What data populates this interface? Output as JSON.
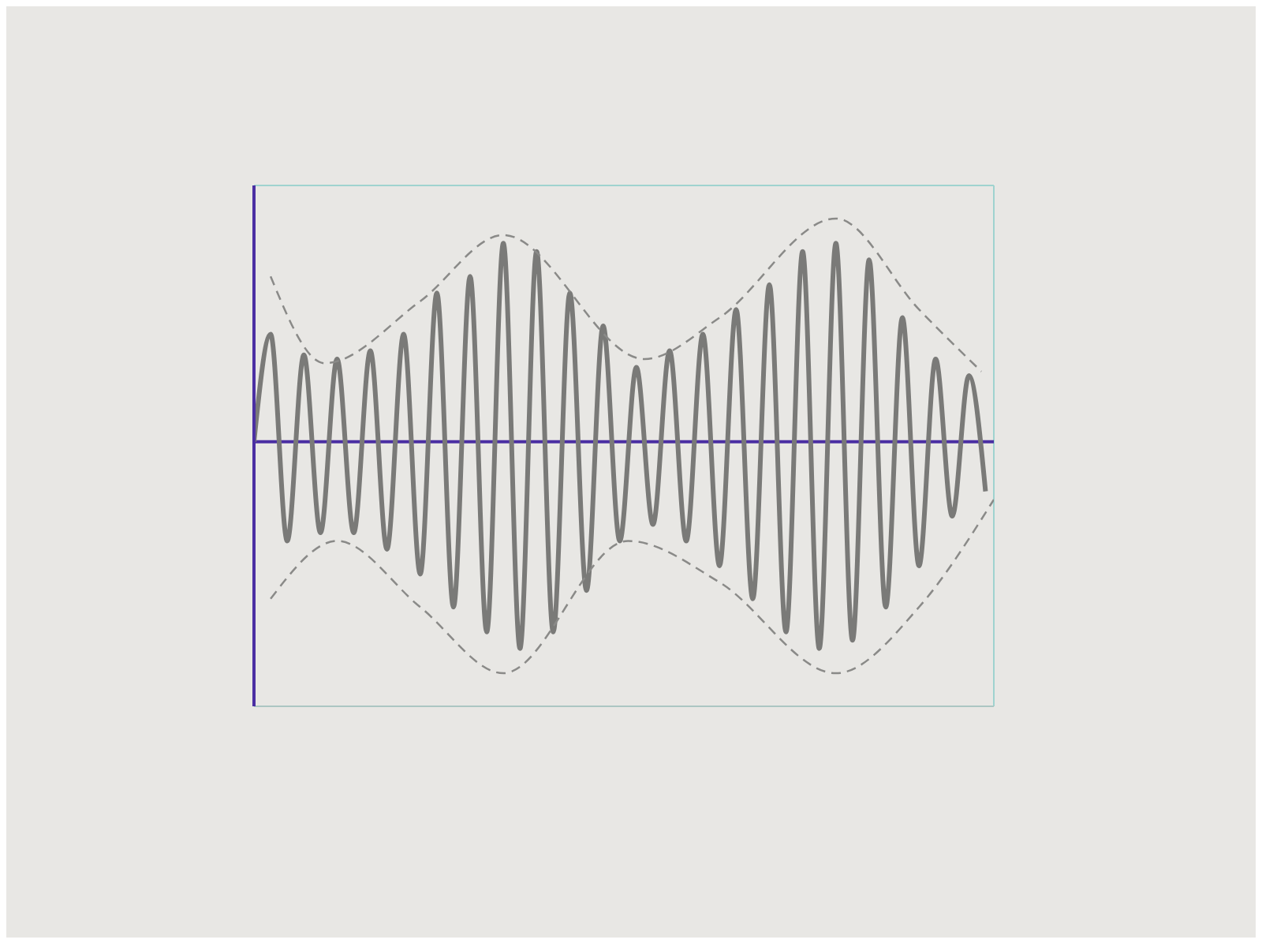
{
  "chart_data": {
    "type": "line",
    "grid": true,
    "tick_labels": false,
    "xlim": [
      0,
      8.9
    ],
    "ylim": [
      -3.2,
      3.1
    ],
    "xticks": [
      0,
      1,
      2,
      3,
      4,
      5,
      6,
      7,
      8
    ],
    "yticks": [
      -3,
      -2,
      -1,
      0,
      1,
      2,
      3
    ],
    "series": [
      {
        "color": "#7a7a78",
        "line_style": "solid",
        "x": [
          0,
          0.2,
          0.4,
          0.6,
          0.8,
          1.0,
          1.2,
          1.4,
          1.6,
          1.8,
          2.0,
          2.2,
          2.4,
          2.6,
          2.8,
          3.0,
          3.2,
          3.4,
          3.6,
          3.8,
          4.0,
          4.2,
          4.4,
          4.6,
          4.8,
          5.0,
          5.2,
          5.4,
          5.6,
          5.8,
          6.0,
          6.2,
          6.4,
          6.6,
          6.8,
          7.0,
          7.2,
          7.4,
          7.6,
          7.8,
          8.0,
          8.2,
          8.4,
          8.6,
          8.8
        ],
        "values": [
          0,
          1.3,
          -1.2,
          1.05,
          -1.1,
          1.0,
          -1.1,
          1.1,
          -1.3,
          1.3,
          -1.6,
          1.8,
          -2.0,
          2.0,
          -2.3,
          2.4,
          -2.5,
          2.3,
          -2.3,
          1.8,
          -1.8,
          1.4,
          -1.2,
          0.9,
          -1.0,
          1.1,
          -1.2,
          1.3,
          -1.5,
          1.6,
          -1.9,
          1.9,
          -2.3,
          2.3,
          -2.5,
          2.4,
          -2.4,
          2.2,
          -2.0,
          1.5,
          -1.5,
          1.0,
          -0.9,
          0.8,
          -0.6
        ]
      },
      {
        "color": "#8a8a88",
        "line_style": "dashed",
        "x": [
          0.2,
          0.85,
          2.0,
          3.0,
          4.7,
          5.6,
          7.0,
          8.0,
          8.75
        ],
        "values": [
          2.0,
          0.95,
          1.7,
          2.5,
          1.0,
          1.5,
          2.7,
          1.6,
          0.85
        ]
      },
      {
        "color": "#8a8a88",
        "line_style": "dashed",
        "x": [
          0.2,
          1.0,
          2.0,
          3.0,
          4.5,
          5.6,
          7.0,
          8.0,
          8.9
        ],
        "values": [
          -1.9,
          -1.2,
          -2.0,
          -2.8,
          -1.2,
          -1.7,
          -2.8,
          -2.0,
          -0.7
        ]
      }
    ]
  }
}
